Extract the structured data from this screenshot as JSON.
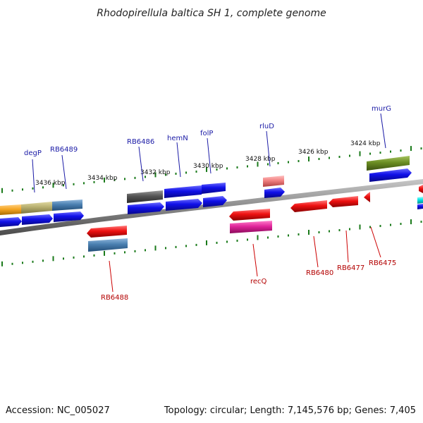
{
  "title": "Rhodopirellula baltica SH 1, complete genome",
  "footer": {
    "accession": "Accession: NC_005027",
    "summary": "Topology: circular; Length: 7,145,576 bp; Genes: 7,405"
  },
  "scale_labels": [
    "3436 kbp",
    "3434 kbp",
    "3432 kbp",
    "3430 kbp",
    "3428 kbp",
    "3426 kbp",
    "3424 kbp"
  ],
  "gene_labels_top": [
    "degP",
    "RB6489",
    "RB6486",
    "hemN",
    "folP",
    "rluD",
    "murG"
  ],
  "gene_labels_bottom": [
    "RB6488",
    "recQ",
    "RB6480",
    "RB6477",
    "RB6475"
  ],
  "colors": {
    "blue": "#1010e8",
    "red": "#ee1111",
    "darkgray": "#555555",
    "steel": "#4a7fb0",
    "olive": "#6b8e23",
    "salmon": "#f08080",
    "magenta": "#e0249a",
    "orange": "#f5a623",
    "khaki": "#b8b070",
    "cyan": "#00e5e5",
    "tick": "#1a7a1a",
    "backbone": "#8a8a8a"
  }
}
